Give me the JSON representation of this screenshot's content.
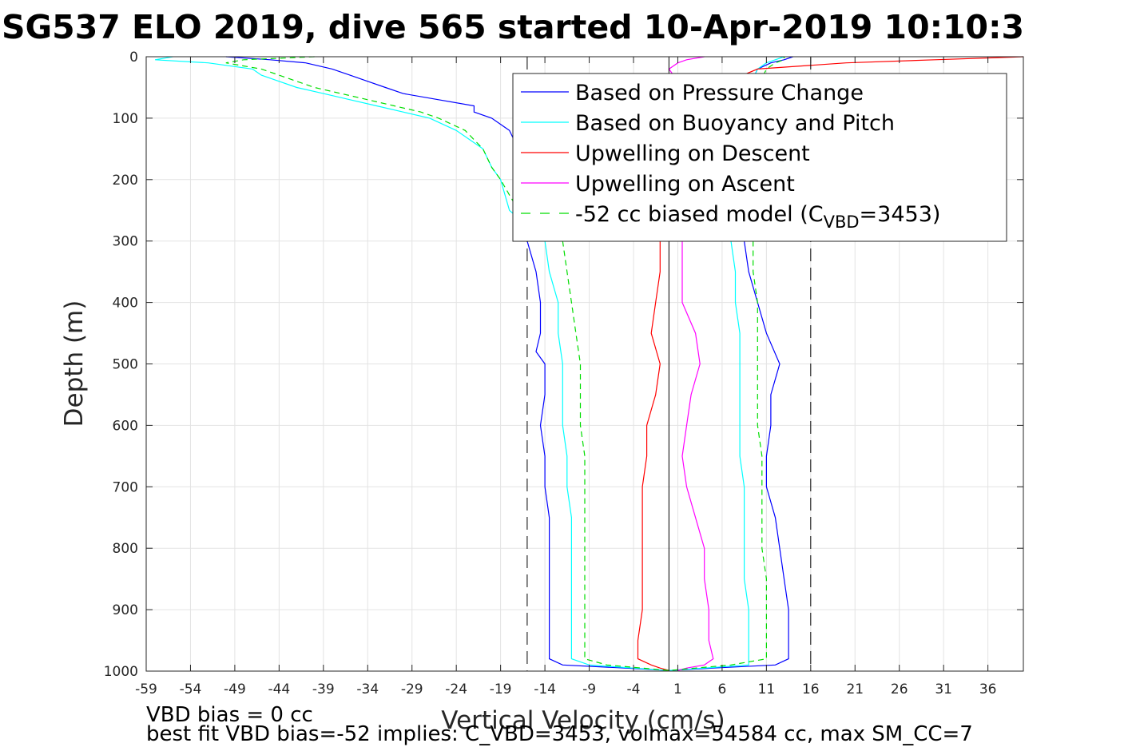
{
  "chart_data": {
    "type": "line",
    "title": "SG537 ELO 2019, dive 565 started 10-Apr-2019 10:10:3",
    "xlabel": "Vertical Velocity (cm/s)",
    "ylabel": "Depth (m)",
    "xlim": [
      -59,
      40
    ],
    "ylim": [
      0,
      1000
    ],
    "y_reversed": true,
    "grid": true,
    "x_ticks": [
      -59,
      -54,
      -49,
      -44,
      -39,
      -34,
      -29,
      -24,
      -19,
      -14,
      -9,
      -4,
      1,
      6,
      11,
      16,
      21,
      26,
      31,
      36
    ],
    "y_ticks": [
      0,
      100,
      200,
      300,
      400,
      500,
      600,
      700,
      800,
      900,
      1000
    ],
    "legend_position": "top-right",
    "reference_lines": [
      {
        "x": 0,
        "style": "solid",
        "color": "#000000"
      },
      {
        "x": -16,
        "style": "dashed",
        "color": "#000000"
      },
      {
        "x": 16,
        "style": "dashed",
        "color": "#000000"
      }
    ],
    "series": [
      {
        "name": "Based on Pressure Change",
        "color": "#0000ff",
        "style": "solid",
        "depth": [
          0,
          5,
          10,
          20,
          30,
          40,
          50,
          60,
          70,
          80,
          90,
          100,
          120,
          150,
          200,
          250,
          300,
          350,
          400,
          450,
          480,
          500,
          550,
          600,
          650,
          700,
          750,
          800,
          850,
          900,
          950,
          980,
          990,
          995,
          999,
          995,
          990,
          980,
          950,
          900,
          850,
          800,
          750,
          700,
          650,
          600,
          550,
          500,
          450,
          400,
          350,
          300,
          250,
          200,
          150,
          100,
          50,
          20,
          10,
          5,
          0
        ],
        "velocity": [
          -50,
          -45,
          -41,
          -38,
          -36,
          -34,
          -32,
          -30,
          -26,
          -22,
          -22,
          -20,
          -18,
          -17,
          -16,
          -16,
          -16,
          -15,
          -14.5,
          -14.5,
          -15,
          -14,
          -14,
          -14.5,
          -14,
          -14,
          -13.5,
          -13.5,
          -13.5,
          -13.5,
          -13.5,
          -13.5,
          -12,
          -5,
          0,
          5,
          12,
          13.5,
          13.5,
          13.5,
          13,
          12.5,
          12,
          11,
          11,
          11.5,
          11.5,
          12.5,
          11,
          10,
          9,
          8.5,
          8.5,
          8.5,
          8.5,
          8.5,
          9,
          10,
          11.5,
          13,
          14
        ]
      },
      {
        "name": "Based on Buoyancy and Pitch",
        "color": "#00ffff",
        "style": "solid",
        "depth": [
          0,
          5,
          10,
          20,
          30,
          40,
          50,
          60,
          70,
          80,
          90,
          100,
          120,
          150,
          180,
          200,
          250,
          300,
          350,
          400,
          450,
          500,
          550,
          600,
          650,
          700,
          750,
          800,
          850,
          900,
          950,
          980,
          990,
          995,
          999,
          995,
          990,
          980,
          950,
          900,
          850,
          800,
          750,
          700,
          650,
          600,
          550,
          500,
          450,
          400,
          350,
          300,
          250,
          200,
          150,
          100,
          50,
          20,
          10,
          5,
          0
        ],
        "velocity": [
          -56,
          -58,
          -52,
          -47,
          -46,
          -44,
          -42,
          -39,
          -36,
          -33,
          -30,
          -27,
          -24,
          -21,
          -20,
          -19,
          -18,
          -14,
          -13.5,
          -12.5,
          -12.5,
          -12,
          -12,
          -12,
          -11.5,
          -11.5,
          -11,
          -11,
          -11,
          -11,
          -11,
          -11,
          -9,
          -4,
          0,
          4,
          9,
          9,
          9,
          9,
          8.5,
          8.5,
          8.5,
          8.5,
          8,
          8,
          8,
          8,
          8,
          7.5,
          7.5,
          7,
          7.5,
          8,
          8,
          8.5,
          9,
          10,
          11,
          12,
          13
        ]
      },
      {
        "name": "Upwelling on Descent",
        "color": "#ff0000",
        "style": "solid",
        "depth": [
          0,
          5,
          10,
          20,
          50,
          100,
          150,
          200,
          250,
          300,
          350,
          400,
          450,
          500,
          550,
          600,
          650,
          700,
          750,
          800,
          850,
          900,
          950,
          980,
          990,
          995,
          999
        ],
        "velocity": [
          40,
          30,
          20,
          10,
          5,
          2,
          0,
          -1,
          -2,
          -1,
          -1,
          -1.5,
          -2,
          -1,
          -1.5,
          -2.5,
          -2.5,
          -3,
          -3,
          -3,
          -3,
          -3,
          -3.5,
          -3.5,
          -2,
          -1,
          0
        ]
      },
      {
        "name": "Upwelling on Ascent",
        "color": "#ff00ff",
        "style": "solid",
        "depth": [
          999,
          995,
          990,
          980,
          950,
          900,
          850,
          800,
          750,
          700,
          650,
          600,
          550,
          500,
          450,
          400,
          350,
          300,
          250,
          200,
          150,
          100,
          50,
          20,
          10,
          5,
          0
        ],
        "velocity": [
          1,
          2,
          4,
          5,
          4.5,
          4.5,
          4,
          4,
          3,
          2,
          1.5,
          2,
          2.5,
          3.5,
          3,
          1.5,
          1.5,
          1.5,
          1.5,
          2,
          2,
          2,
          1.5,
          0,
          1,
          2,
          4
        ]
      },
      {
        "name": "-52 cc biased model (C_VBD=3453)",
        "color": "#00dd00",
        "style": "dashed",
        "depth": [
          0,
          5,
          10,
          20,
          30,
          40,
          50,
          60,
          70,
          80,
          90,
          100,
          120,
          150,
          180,
          200,
          250,
          300,
          350,
          400,
          450,
          500,
          550,
          600,
          650,
          700,
          750,
          800,
          850,
          900,
          950,
          980,
          990,
          995,
          999,
          995,
          990,
          980,
          950,
          900,
          850,
          800,
          750,
          700,
          650,
          600,
          550,
          500,
          450,
          400,
          350,
          300,
          250,
          200,
          150,
          100,
          50,
          20,
          10,
          5,
          0
        ],
        "velocity": [
          -40,
          -48,
          -50,
          -46,
          -44,
          -42,
          -40,
          -37,
          -34,
          -31,
          -28,
          -26,
          -23,
          -21,
          -20,
          -19,
          -17,
          -12,
          -11.5,
          -11,
          -10.5,
          -10,
          -10,
          -10,
          -9.5,
          -9.5,
          -9.5,
          -9.5,
          -9.5,
          -9.5,
          -9.5,
          -9.5,
          -7,
          -3,
          0,
          3,
          7,
          11,
          11,
          11,
          11,
          10.5,
          10.5,
          10.5,
          10.5,
          10,
          10,
          10,
          10,
          10,
          9.5,
          9.5,
          9.5,
          9.5,
          9.5,
          10,
          10,
          11,
          12,
          13,
          13
        ]
      }
    ]
  },
  "legend": {
    "items": [
      {
        "label": "Based on Pressure Change",
        "color": "#0000ff",
        "dashed": false
      },
      {
        "label": "Based on Buoyancy and Pitch",
        "color": "#00ffff",
        "dashed": false
      },
      {
        "label": "Upwelling on Descent",
        "color": "#ff0000",
        "dashed": false
      },
      {
        "label": "Upwelling on Ascent",
        "color": "#ff00ff",
        "dashed": false
      },
      {
        "label": "-52 cc biased model (C",
        "sub": "VBD",
        "suffix": "=3453)",
        "color": "#00dd00",
        "dashed": true
      }
    ]
  },
  "footer": {
    "line1": "VBD bias = 0 cc",
    "line2": "best fit VBD bias=-52 implies: C_VBD=3453, volmax=54584 cc, max SM_CC=7"
  }
}
